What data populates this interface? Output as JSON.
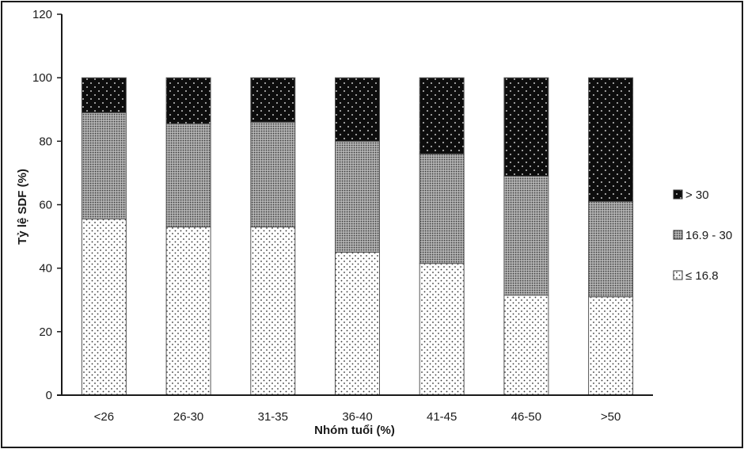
{
  "chart_data": {
    "type": "bar",
    "stacked": true,
    "title": "",
    "xlabel": "Nhóm tuổi (%)",
    "ylabel": "Tỷ lệ SDF (%)",
    "ylim": [
      0,
      120
    ],
    "yticks": [
      0,
      20,
      40,
      60,
      80,
      100,
      120
    ],
    "grid": false,
    "legend_position": "right",
    "categories": [
      "<26",
      "26-30",
      "31-35",
      "36-40",
      "41-45",
      "46-50",
      ">50"
    ],
    "series": [
      {
        "name": "≤ 16.8",
        "pattern": "sparse-dots",
        "values": [
          55.5,
          53,
          53,
          45,
          41.5,
          31.5,
          31
        ]
      },
      {
        "name": "16.9 - 30",
        "pattern": "dense-dots",
        "values": [
          33.5,
          32.5,
          33,
          35,
          34.5,
          37.5,
          30
        ]
      },
      {
        "name": "> 30",
        "pattern": "black-dots",
        "values": [
          11,
          14.5,
          14,
          20,
          24,
          31,
          39
        ]
      }
    ],
    "legend_order": [
      "> 30",
      "16.9 - 30",
      "≤ 16.8"
    ],
    "colors": {
      "axis": "#1a1a1a",
      "bar_outline": "#555555",
      "dark_fill": "#0d0d0d",
      "mid_fill": "#8a8a8a"
    }
  }
}
